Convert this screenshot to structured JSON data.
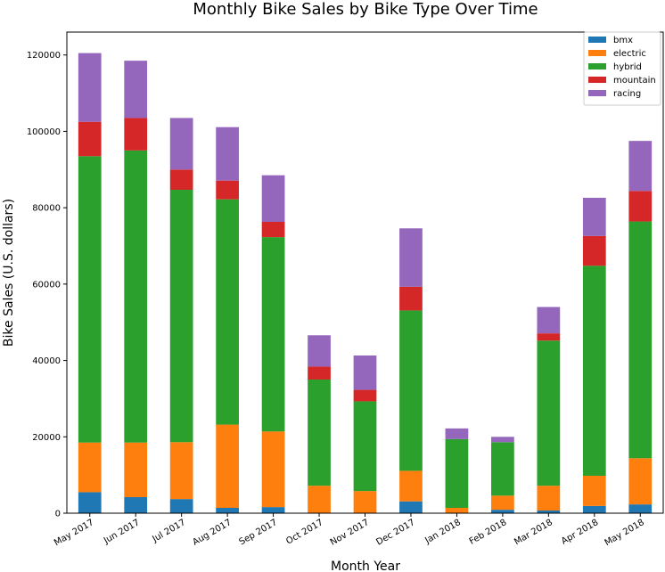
{
  "chart_data": {
    "type": "bar",
    "stacked": true,
    "title": "Monthly Bike Sales by Bike Type Over Time",
    "xlabel": "Month Year",
    "ylabel": "Bike Sales (U.S. dollars)",
    "ylim": [
      0,
      126000
    ],
    "yticks": [
      0,
      20000,
      40000,
      60000,
      80000,
      100000,
      120000
    ],
    "grid": false,
    "legend_position": "top-right",
    "categories": [
      "May 2017",
      "Jun 2017",
      "Jul 2017",
      "Aug 2017",
      "Sep 2017",
      "Oct 2017",
      "Nov 2017",
      "Dec 2017",
      "Jan 2018",
      "Feb 2018",
      "Mar 2018",
      "Apr 2018",
      "May 2018"
    ],
    "series": [
      {
        "name": "bmx",
        "color": "#1f77b4",
        "values": [
          5500,
          4200,
          3700,
          1400,
          1600,
          0,
          0,
          3100,
          0,
          900,
          700,
          1900,
          2300
        ]
      },
      {
        "name": "electric",
        "color": "#ff7f0e",
        "values": [
          13000,
          14300,
          14900,
          21800,
          19800,
          7200,
          5800,
          8000,
          1400,
          3700,
          6500,
          7900,
          12100
        ]
      },
      {
        "name": "hybrid",
        "color": "#2ca02c",
        "values": [
          75000,
          76500,
          66100,
          59000,
          50900,
          27800,
          23500,
          42000,
          18000,
          14000,
          38000,
          55000,
          62000
        ]
      },
      {
        "name": "mountain",
        "color": "#d62728",
        "values": [
          9000,
          8500,
          5300,
          4900,
          4000,
          3400,
          3000,
          6200,
          0,
          0,
          1900,
          7800,
          8000
        ]
      },
      {
        "name": "racing",
        "color": "#9467bd",
        "values": [
          18000,
          15000,
          13500,
          14000,
          12200,
          8200,
          9000,
          15300,
          2800,
          1400,
          6900,
          10000,
          13100
        ]
      }
    ]
  }
}
